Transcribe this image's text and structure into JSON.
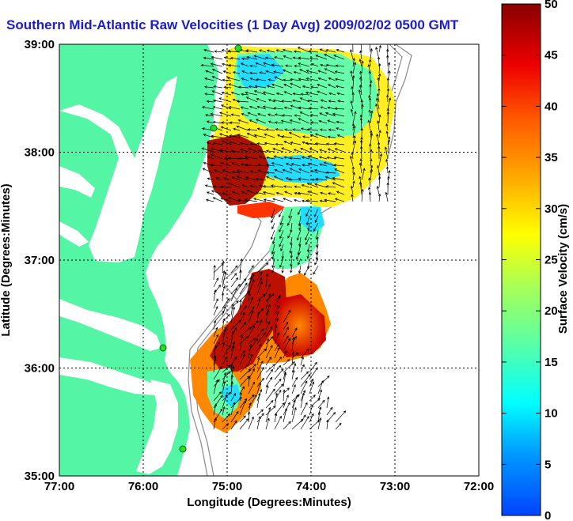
{
  "title": "Southern Mid-Atlantic Raw Velocities (1 Day Avg) 2009/02/02 0500 GMT",
  "x_label": "Longitude (Degrees:Minutes)",
  "y_label": "Latitude (Degrees:Minutes)",
  "x_ticks": [
    "77:00",
    "76:00",
    "75:00",
    "74:00",
    "73:00",
    "72:00"
  ],
  "y_ticks": [
    "39:00",
    "38:00",
    "37:00",
    "36:00",
    "35:00"
  ],
  "colorbar": {
    "label": "Surface Velocity (cm/s)",
    "ticks": [
      "0",
      "5",
      "10",
      "15",
      "20",
      "25",
      "30",
      "35",
      "40",
      "45",
      "50"
    ],
    "min": 0,
    "max": 50
  },
  "colors": {
    "land": "#55f5a6",
    "title": "#1c1ccc",
    "grid": "#000000",
    "isobath": "#888888",
    "station": "#22dd22"
  }
}
